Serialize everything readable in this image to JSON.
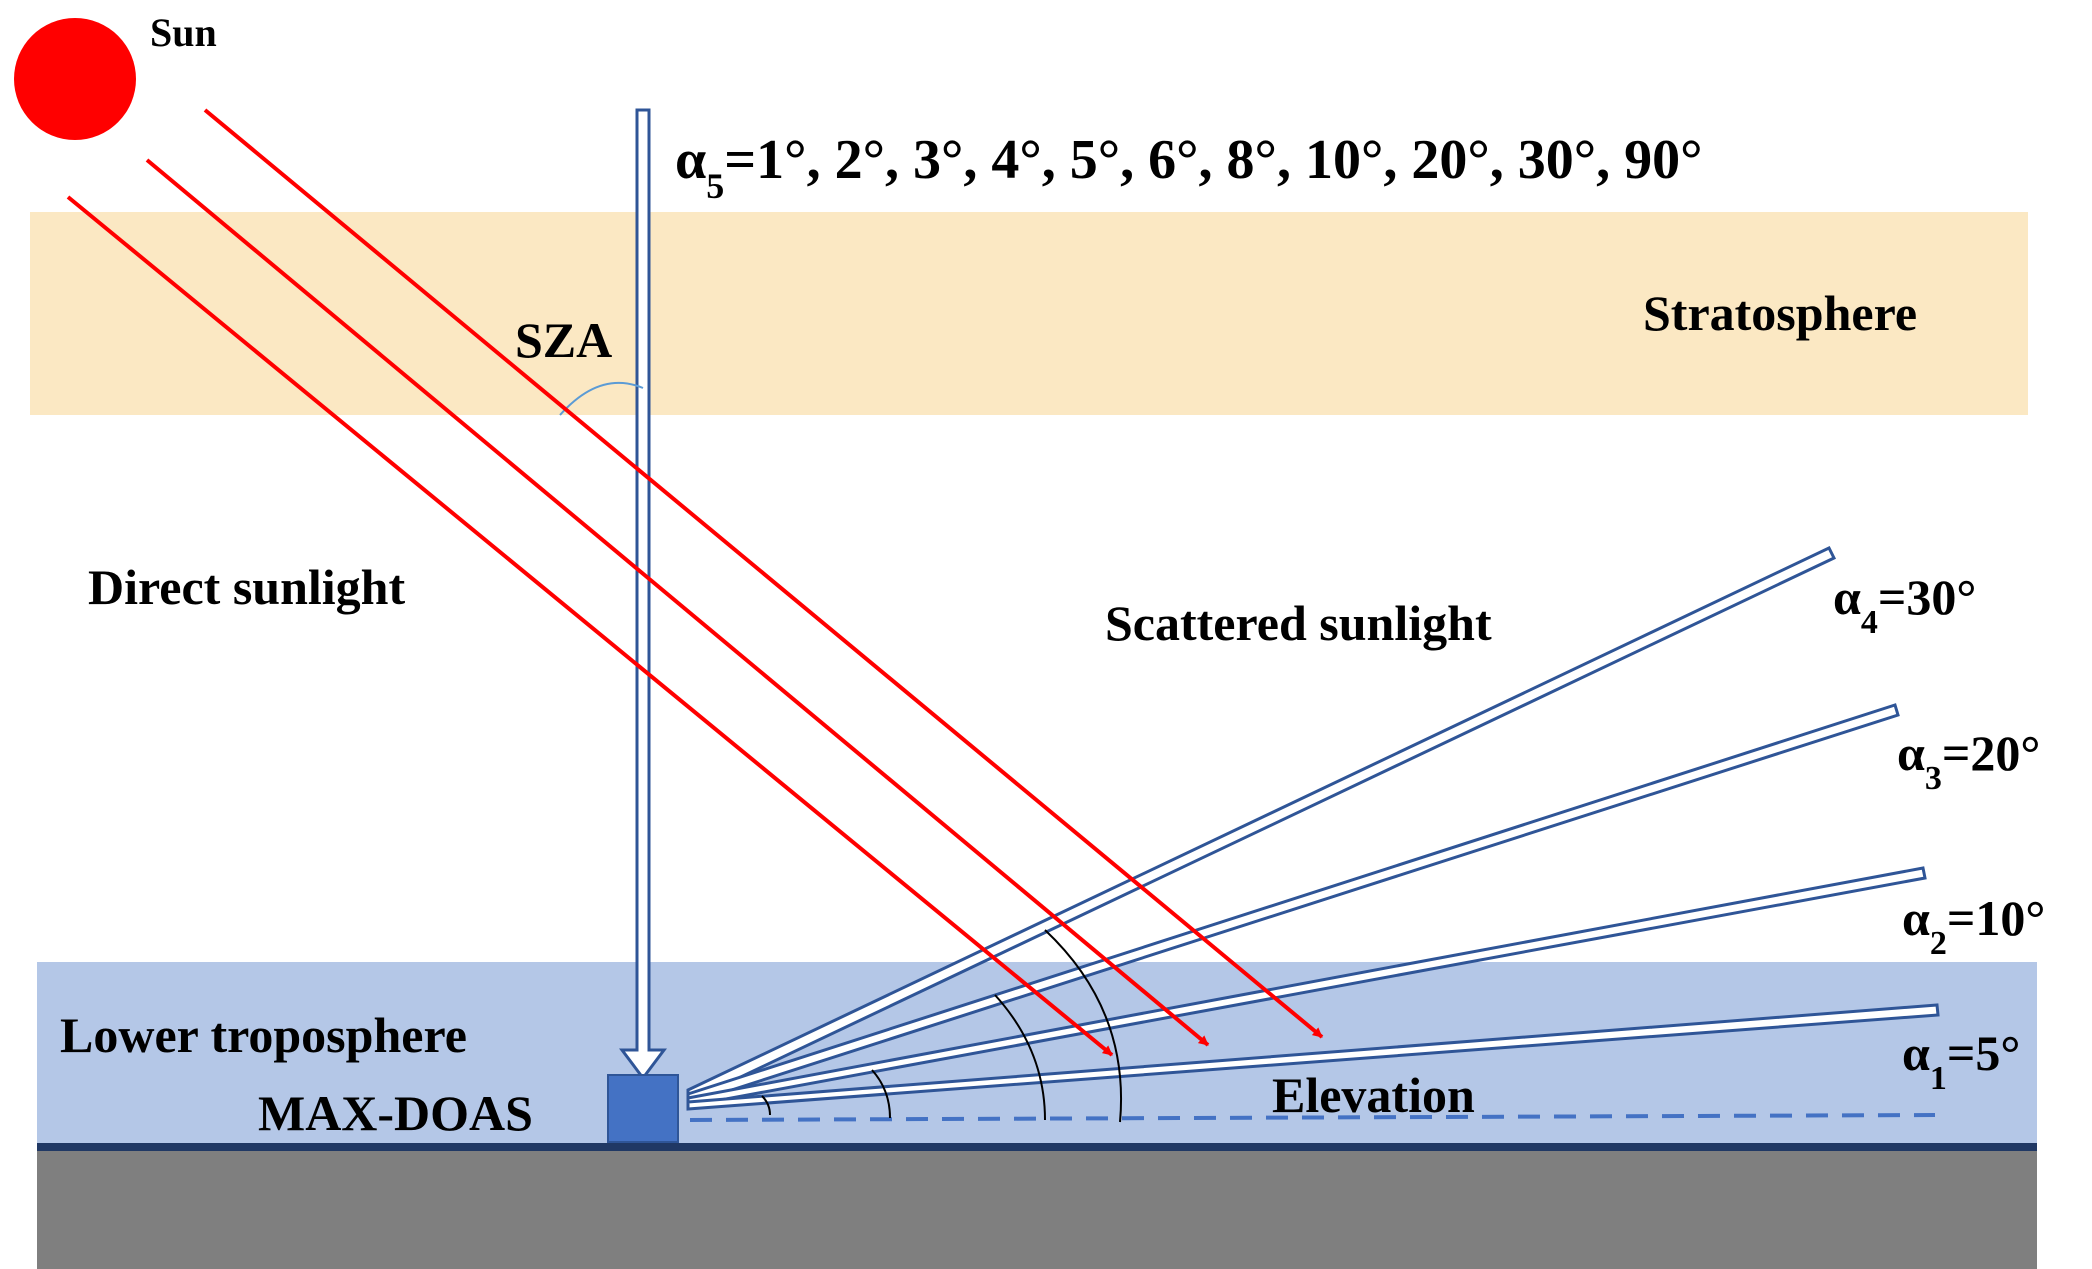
{
  "labels": {
    "sun": "Sun",
    "alpha5_symbol": "α",
    "alpha5_sub": "5",
    "alpha5_values": "=1°, 2°, 3°, 4°, 5°, 6°, 8°, 10°, 20°, 30°, 90°",
    "sza": "SZA",
    "stratosphere": "Stratosphere",
    "direct_sunlight": "Direct sunlight",
    "scattered_sunlight": "Scattered sunlight",
    "lower_troposphere": "Lower troposphere",
    "max_doas": "MAX-DOAS",
    "elevation": "Elevation"
  },
  "elevation_beams": [
    {
      "symbol": "α",
      "sub": "4",
      "value": "=30°"
    },
    {
      "symbol": "α",
      "sub": "3",
      "value": "=20°"
    },
    {
      "symbol": "α",
      "sub": "2",
      "value": "=10°"
    },
    {
      "symbol": "α",
      "sub": "1",
      "value": "=5°"
    }
  ],
  "colors": {
    "sun": "#ff0000",
    "sun_rays": "#ff0000",
    "stratosphere_band": "#fbe8c3",
    "troposphere_band": "#b4c7e7",
    "ground": "#7f7f7f",
    "ground_line": "#203864",
    "instrument": "#4472c4",
    "beam_outline": "#2f5597",
    "dashed_line": "#4472c4"
  },
  "icons": {
    "sun": "red-circle",
    "instrument": "blue-square"
  }
}
